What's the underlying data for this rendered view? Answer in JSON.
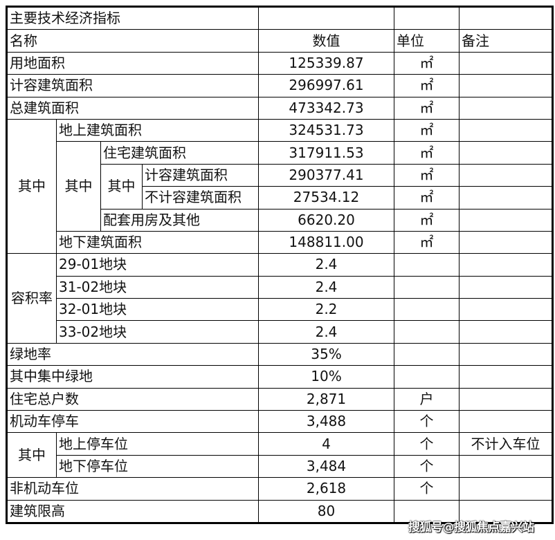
{
  "title": "主要技术经济指标",
  "headers": {
    "name": "名称",
    "value": "数值",
    "unit": "单位",
    "note": "备注"
  },
  "groups": {
    "area_sub": "其中",
    "residential_sub": "其中",
    "counted_sub": "其中",
    "far": "容积率",
    "parking_sub": "其中"
  },
  "rows": [
    {
      "name": "用地面积",
      "value": "125339.87",
      "unit": "㎡"
    },
    {
      "name": "计容建筑面积",
      "value": "296997.61",
      "unit": "㎡"
    },
    {
      "name": "总建筑面积",
      "value": "473342.73",
      "unit": "㎡"
    },
    {
      "name": "地上建筑面积",
      "value": "324531.73",
      "unit": "㎡"
    },
    {
      "name": "住宅建筑面积",
      "value": "317911.53",
      "unit": "㎡"
    },
    {
      "name": "计容建筑面积",
      "value": "290377.41",
      "unit": "㎡"
    },
    {
      "name": "不计容建筑面积",
      "value": "27534.12",
      "unit": "㎡"
    },
    {
      "name": "配套用房及其他",
      "value": "6620.20",
      "unit": "㎡"
    },
    {
      "name": "地下建筑面积",
      "value": "148811.00",
      "unit": "㎡"
    },
    {
      "name": "29-01地块",
      "value": "2.4"
    },
    {
      "name": "31-02地块",
      "value": "2.4"
    },
    {
      "name": "32-01地块",
      "value": "2.2"
    },
    {
      "name": "33-02地块",
      "value": "2.4"
    },
    {
      "name": "绿地率",
      "value": "35%"
    },
    {
      "name": "其中集中绿地",
      "value": "10%"
    },
    {
      "name": "住宅总户数",
      "value": "2,871",
      "unit": "户"
    },
    {
      "name": "机动车停车",
      "value": "3,488",
      "unit": "个"
    },
    {
      "name": "地上停车位",
      "value": "4",
      "unit": "个",
      "note": "不计入车位"
    },
    {
      "name": "地下停车位",
      "value": "3,484",
      "unit": "个"
    },
    {
      "name": "非机动车位",
      "value": "2,618",
      "unit": "个"
    },
    {
      "name": "建筑限高",
      "value": "80"
    }
  ],
  "watermark": "搜狐号@搜狐焦点嘉兴站"
}
